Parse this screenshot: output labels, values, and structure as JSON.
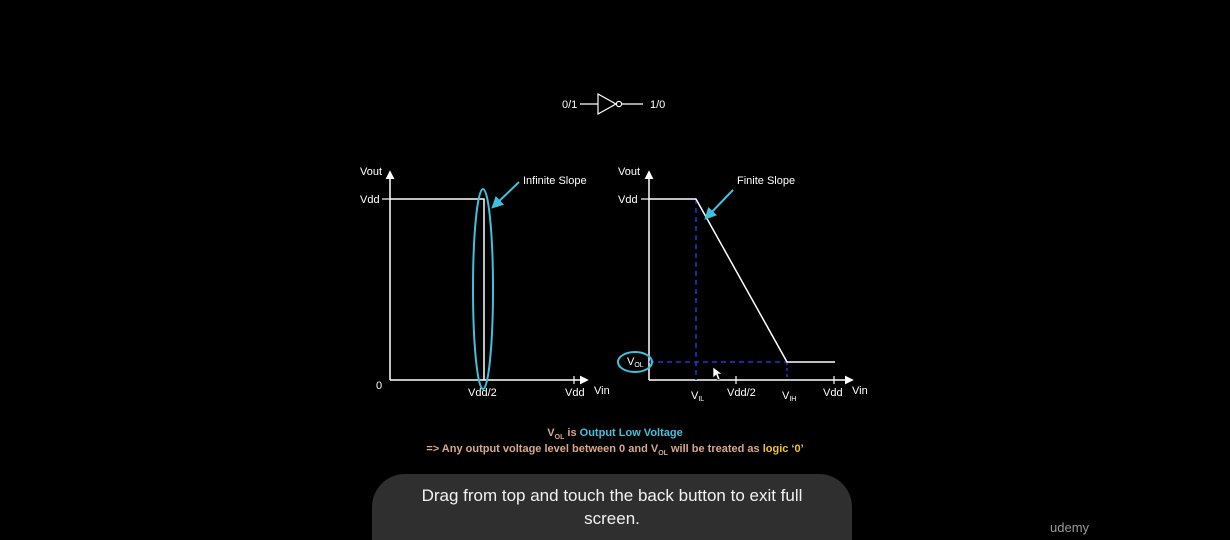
{
  "inverter": {
    "input_label": "0/1",
    "output_label": "1/0"
  },
  "ideal_vtc": {
    "y_axis_label": "Vout",
    "vdd_label": "Vdd",
    "origin_label": "0",
    "x_mid_label": "Vdd/2",
    "x_end_label": "Vdd",
    "x_axis_label": "Vin",
    "annotation": "Infinite Slope"
  },
  "real_vtc": {
    "y_axis_label": "Vout",
    "vdd_label": "Vdd",
    "vol_main": "V",
    "vol_sub": "OL",
    "vil_main": "V",
    "vil_sub": "IL",
    "x_mid_label": "Vdd/2",
    "vih_main": "V",
    "vih_sub": "IH",
    "x_end_label": "Vdd",
    "x_axis_label": "Vin",
    "annotation": "Finite Slope"
  },
  "caption": {
    "line1": {
      "v": "V",
      "sub": "OL",
      "mid": " is ",
      "highlight": "Output Low Voltage"
    },
    "line2": {
      "pre": "=> Any output voltage level between 0 and ",
      "v": "V",
      "sub": "OL",
      "post": " will be treated as ",
      "accent": "logic ‘0’"
    }
  },
  "toast": {
    "message": "Drag from top and touch the back button to exit full screen."
  },
  "brand": {
    "name": "udemy"
  },
  "colors": {
    "background": "#000000",
    "curve": "#ffffff",
    "highlight": "#3fc1dd",
    "dashed": "#2f2fd6",
    "caption_text": "#d9a889",
    "logic_accent": "#f2c21b"
  }
}
